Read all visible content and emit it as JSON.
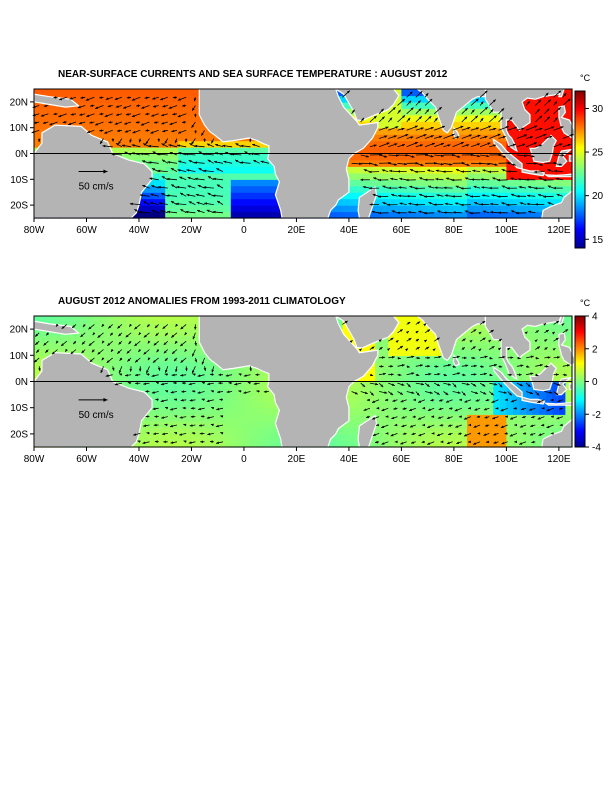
{
  "chart_data": [
    {
      "type": "heatmap",
      "title": "NEAR-SURFACE CURRENTS AND SEA SURFACE TEMPERATURE : AUGUST 2012",
      "x_ticks": [
        "80W",
        "60W",
        "40W",
        "20W",
        "0",
        "20E",
        "40E",
        "60E",
        "80E",
        "100E",
        "120E"
      ],
      "x_tick_values": [
        -80,
        -60,
        -40,
        -20,
        0,
        20,
        40,
        60,
        80,
        100,
        120
      ],
      "y_ticks": [
        "20N",
        "10N",
        "0N",
        "10S",
        "20S"
      ],
      "y_tick_values": [
        20,
        10,
        0,
        -10,
        -20
      ],
      "xlim": [
        -80,
        125
      ],
      "ylim": [
        -25,
        25
      ],
      "equator_line": true,
      "colorbar": {
        "unit": "°C",
        "ticks": [
          "30",
          "25",
          "20",
          "15"
        ],
        "tick_values": [
          30,
          25,
          20,
          15
        ],
        "range": [
          14,
          32
        ]
      },
      "vector_scale_label": "50 cm/s",
      "grid": false
    },
    {
      "type": "heatmap",
      "title": "AUGUST 2012 ANOMALIES FROM 1993-2011 CLIMATOLOGY",
      "x_ticks": [
        "80W",
        "60W",
        "40W",
        "20W",
        "0",
        "20E",
        "40E",
        "60E",
        "80E",
        "100E",
        "120E"
      ],
      "x_tick_values": [
        -80,
        -60,
        -40,
        -20,
        0,
        20,
        40,
        60,
        80,
        100,
        120
      ],
      "y_ticks": [
        "20N",
        "10N",
        "0N",
        "10S",
        "20S"
      ],
      "y_tick_values": [
        20,
        10,
        0,
        -10,
        -20
      ],
      "xlim": [
        -80,
        125
      ],
      "ylim": [
        -25,
        25
      ],
      "equator_line": true,
      "colorbar": {
        "unit": "°C",
        "ticks": [
          "4",
          "2",
          "0",
          "-2",
          "-4"
        ],
        "tick_values": [
          4,
          2,
          0,
          -2,
          -4
        ],
        "range": [
          -4,
          4
        ]
      },
      "vector_scale_label": "50 cm/s",
      "grid": false
    }
  ],
  "colors": {
    "land": "#b4b4b4",
    "coast": "#ffffff",
    "arrow": "#000000"
  }
}
